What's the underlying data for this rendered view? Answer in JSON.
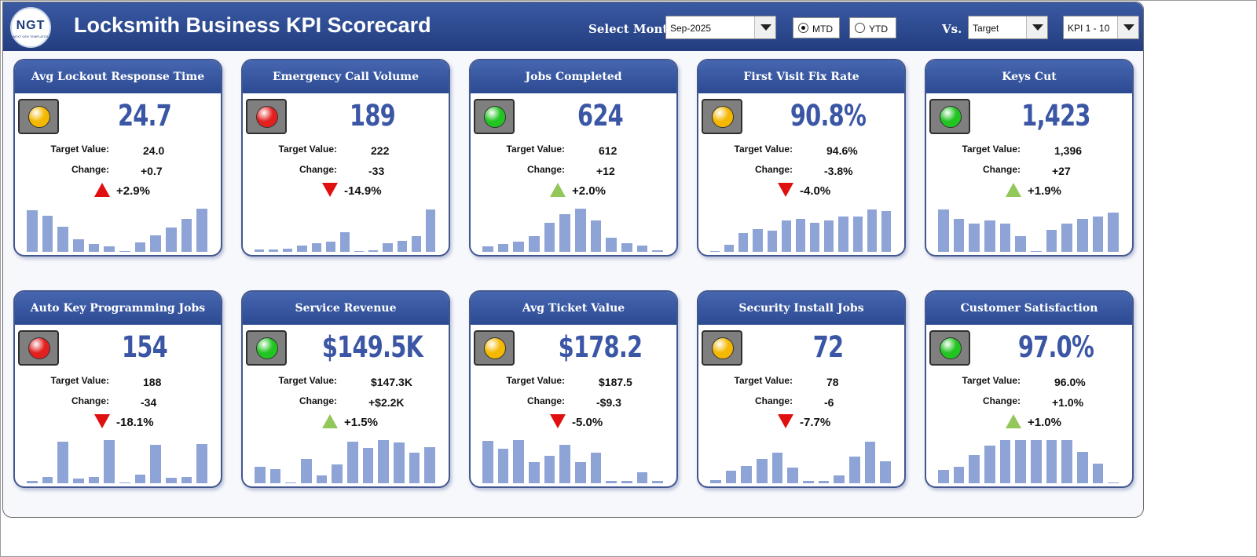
{
  "header": {
    "logo_text": "NGT",
    "logo_subtext": "NEXT GEN TEMPLATES",
    "title": "Locksmith Business KPI Scorecard",
    "select_month_label": "Select Month",
    "month_value": "Sep-2025",
    "mtd_label": "MTD",
    "ytd_label": "YTD",
    "mtd_selected": true,
    "vs_label": "Vs.",
    "compare_value": "Target",
    "kpi_range_value": "KPI 1 - 10"
  },
  "colors": {
    "header": "#233d80",
    "bar": "#8fa4d6",
    "value": "#3a56a5",
    "light_green": "#22c422",
    "light_red": "#e32020",
    "light_amber": "#f5b800",
    "arrow_up": "#92c85a",
    "arrow_down": "#e01010"
  },
  "labels": {
    "target": "Target Value:",
    "change": "Change:"
  },
  "cards": [
    {
      "title": "Avg Lockout Response Time",
      "value": "24.7",
      "target": "24.0",
      "change": "+0.7",
      "pct": "+2.9%",
      "light": "amber",
      "arrow": "up",
      "arrow_color": "red",
      "bars": [
        0.95,
        0.82,
        0.58,
        0.28,
        0.18,
        0.12,
        0.02,
        0.22,
        0.38,
        0.55,
        0.75,
        0.98
      ]
    },
    {
      "title": "Emergency Call Volume",
      "value": "189",
      "target": "222",
      "change": "-33",
      "pct": "-14.9%",
      "light": "red",
      "arrow": "down",
      "arrow_color": "red",
      "bars": [
        0.05,
        0.06,
        0.08,
        0.14,
        0.2,
        0.24,
        0.45,
        0.02,
        0.03,
        0.2,
        0.25,
        0.35,
        0.97
      ]
    },
    {
      "title": "Jobs Completed",
      "value": "624",
      "target": "612",
      "change": "+12",
      "pct": "+2.0%",
      "light": "green",
      "arrow": "up",
      "arrow_color": "green",
      "bars": [
        0.12,
        0.18,
        0.24,
        0.35,
        0.66,
        0.85,
        0.98,
        0.72,
        0.32,
        0.2,
        0.15,
        0.03
      ]
    },
    {
      "title": "First Visit Fix Rate",
      "value": "90.8%",
      "target": "94.6%",
      "change": "-3.8%",
      "pct": "-4.0%",
      "light": "amber",
      "arrow": "down",
      "arrow_color": "red",
      "bars": [
        0.02,
        0.16,
        0.42,
        0.52,
        0.48,
        0.72,
        0.75,
        0.66,
        0.72,
        0.8,
        0.8,
        0.97,
        0.92
      ]
    },
    {
      "title": "Keys Cut",
      "value": "1,423",
      "target": "1,396",
      "change": "+27",
      "pct": "+1.9%",
      "light": "green",
      "arrow": "up",
      "arrow_color": "green",
      "bars": [
        0.97,
        0.75,
        0.65,
        0.72,
        0.65,
        0.35,
        0.02,
        0.5,
        0.65,
        0.75,
        0.8,
        0.9
      ]
    },
    {
      "title": "Auto Key Programming Jobs",
      "value": "154",
      "target": "188",
      "change": "-34",
      "pct": "-18.1%",
      "light": "red",
      "arrow": "down",
      "arrow_color": "red",
      "bars": [
        0.05,
        0.15,
        0.95,
        0.1,
        0.15,
        0.98,
        0.02,
        0.2,
        0.88,
        0.12,
        0.15,
        0.9
      ]
    },
    {
      "title": "Service Revenue",
      "value": "$149.5K",
      "target": "$147.3K",
      "change": "+$2.2K",
      "pct": "+1.5%",
      "light": "green",
      "arrow": "up",
      "arrow_color": "green",
      "bars": [
        0.38,
        0.32,
        0.02,
        0.55,
        0.18,
        0.42,
        0.95,
        0.8,
        0.98,
        0.92,
        0.7,
        0.82
      ]
    },
    {
      "title": "Avg Ticket Value",
      "value": "$178.2",
      "target": "$187.5",
      "change": "-$9.3",
      "pct": "-5.0%",
      "light": "amber",
      "arrow": "down",
      "arrow_color": "red",
      "bars": [
        0.97,
        0.78,
        0.98,
        0.48,
        0.62,
        0.88,
        0.48,
        0.7,
        0.05,
        0.06,
        0.25,
        0.06
      ]
    },
    {
      "title": "Security Install Jobs",
      "value": "72",
      "target": "78",
      "change": "-6",
      "pct": "-7.7%",
      "light": "amber",
      "arrow": "down",
      "arrow_color": "red",
      "bars": [
        0.08,
        0.28,
        0.4,
        0.55,
        0.7,
        0.35,
        0.05,
        0.05,
        0.18,
        0.6,
        0.95,
        0.5
      ]
    },
    {
      "title": "Customer Satisfaction",
      "value": "97.0%",
      "target": "96.0%",
      "change": "+1.0%",
      "pct": "+1.0%",
      "light": "green",
      "arrow": "up",
      "arrow_color": "green",
      "bars": [
        0.3,
        0.38,
        0.65,
        0.85,
        0.98,
        0.98,
        0.98,
        0.98,
        0.98,
        0.72,
        0.45,
        0.02
      ]
    }
  ]
}
